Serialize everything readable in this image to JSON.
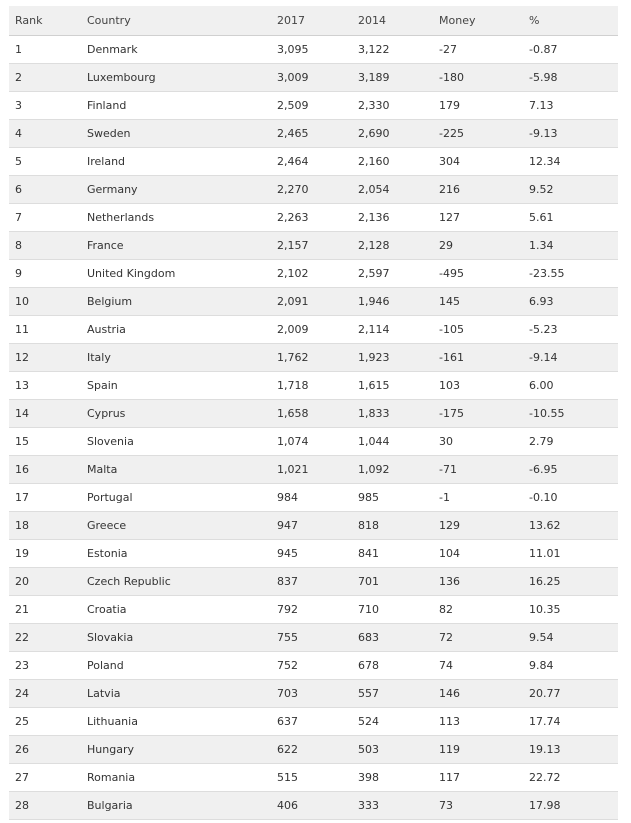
{
  "table": {
    "headers": [
      "Rank",
      "Country",
      "2017",
      "2014",
      "Money",
      "%"
    ],
    "rows": [
      [
        "1",
        "Denmark",
        "3,095",
        "3,122",
        "-27",
        "-0.87"
      ],
      [
        "2",
        "Luxembourg",
        "3,009",
        "3,189",
        "-180",
        "-5.98"
      ],
      [
        "3",
        "Finland",
        "2,509",
        "2,330",
        "179",
        "7.13"
      ],
      [
        "4",
        "Sweden",
        "2,465",
        "2,690",
        "-225",
        "-9.13"
      ],
      [
        "5",
        "Ireland",
        "2,464",
        "2,160",
        "304",
        "12.34"
      ],
      [
        "6",
        "Germany",
        "2,270",
        "2,054",
        "216",
        "9.52"
      ],
      [
        "7",
        "Netherlands",
        "2,263",
        "2,136",
        "127",
        "5.61"
      ],
      [
        "8",
        "France",
        "2,157",
        "2,128",
        "29",
        "1.34"
      ],
      [
        "9",
        "United Kingdom",
        "2,102",
        "2,597",
        "-495",
        "-23.55"
      ],
      [
        "10",
        "Belgium",
        "2,091",
        "1,946",
        "145",
        "6.93"
      ],
      [
        "11",
        "Austria",
        "2,009",
        "2,114",
        "-105",
        "-5.23"
      ],
      [
        "12",
        "Italy",
        "1,762",
        "1,923",
        "-161",
        "-9.14"
      ],
      [
        "13",
        "Spain",
        "1,718",
        "1,615",
        "103",
        "6.00"
      ],
      [
        "14",
        "Cyprus",
        "1,658",
        "1,833",
        "-175",
        "-10.55"
      ],
      [
        "15",
        "Slovenia",
        "1,074",
        "1,044",
        "30",
        "2.79"
      ],
      [
        "16",
        "Malta",
        "1,021",
        "1,092",
        "-71",
        "-6.95"
      ],
      [
        "17",
        "Portugal",
        "984",
        "985",
        "-1",
        "-0.10"
      ],
      [
        "18",
        "Greece",
        "947",
        "818",
        "129",
        "13.62"
      ],
      [
        "19",
        "Estonia",
        "945",
        "841",
        "104",
        "11.01"
      ],
      [
        "20",
        "Czech Republic",
        "837",
        "701",
        "136",
        "16.25"
      ],
      [
        "21",
        "Croatia",
        "792",
        "710",
        "82",
        "10.35"
      ],
      [
        "22",
        "Slovakia",
        "755",
        "683",
        "72",
        "9.54"
      ],
      [
        "23",
        "Poland",
        "752",
        "678",
        "74",
        "9.84"
      ],
      [
        "24",
        "Latvia",
        "703",
        "557",
        "146",
        "20.77"
      ],
      [
        "25",
        "Lithuania",
        "637",
        "524",
        "113",
        "17.74"
      ],
      [
        "26",
        "Hungary",
        "622",
        "503",
        "119",
        "19.13"
      ],
      [
        "27",
        "Romania",
        "515",
        "398",
        "117",
        "22.72"
      ],
      [
        "28",
        "Bulgaria",
        "406",
        "333",
        "73",
        "17.98"
      ]
    ]
  }
}
